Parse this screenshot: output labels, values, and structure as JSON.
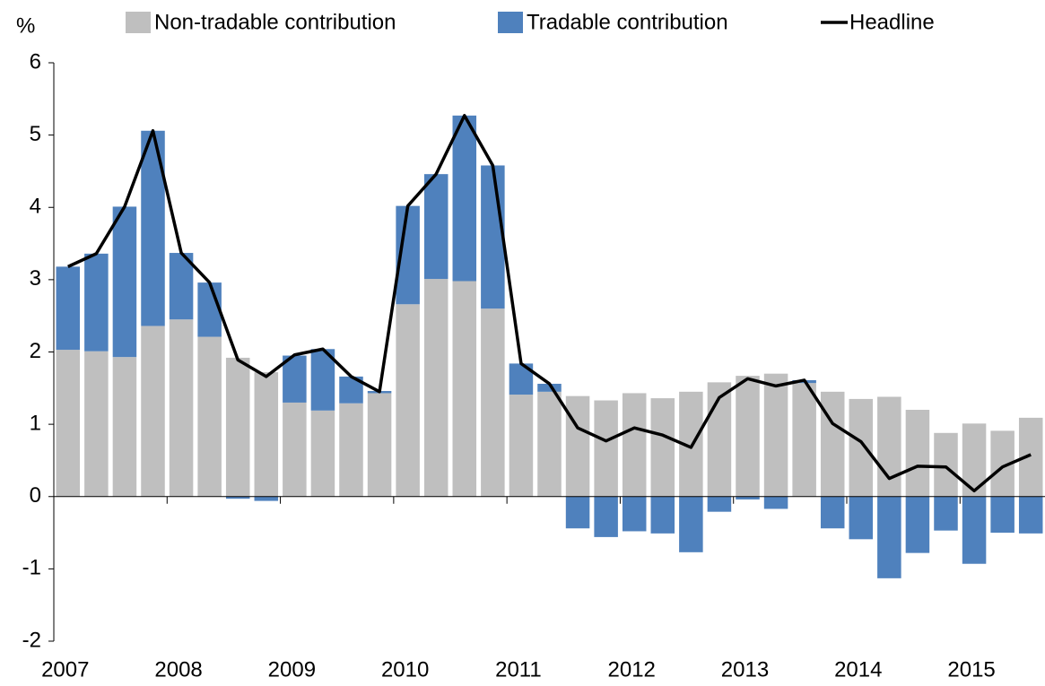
{
  "chart_data": {
    "type": "stacked_bar_line",
    "ylabel": "%",
    "categories": [
      "2007",
      null,
      null,
      null,
      "2008",
      null,
      null,
      null,
      "2009",
      null,
      null,
      null,
      "2010",
      null,
      null,
      null,
      "2011",
      null,
      null,
      null,
      "2012",
      null,
      null,
      null,
      "2013",
      null,
      null,
      null,
      "2014",
      null,
      null,
      null,
      "2015",
      null,
      null
    ],
    "series": [
      {
        "name": "Non-tradable contribution",
        "color": "#bfbfbf",
        "kind": "bar",
        "values": [
          2.03,
          2.01,
          1.93,
          2.36,
          2.45,
          2.21,
          1.92,
          1.72,
          1.3,
          1.19,
          1.29,
          1.43,
          2.66,
          3.01,
          2.98,
          2.6,
          1.41,
          1.45,
          1.39,
          1.33,
          1.43,
          1.36,
          1.45,
          1.58,
          1.67,
          1.7,
          1.57,
          1.45,
          1.35,
          1.38,
          1.2,
          0.88,
          1.01,
          0.91,
          1.09
        ]
      },
      {
        "name": "Tradable contribution",
        "color": "#4f81bd",
        "kind": "bar",
        "values": [
          1.15,
          1.35,
          2.08,
          2.7,
          0.92,
          0.75,
          -0.03,
          -0.06,
          0.65,
          0.85,
          0.37,
          0.03,
          1.36,
          1.45,
          2.29,
          1.98,
          0.43,
          0.11,
          -0.44,
          -0.56,
          -0.48,
          -0.51,
          -0.77,
          -0.21,
          -0.04,
          -0.17,
          0.04,
          -0.44,
          -0.59,
          -1.13,
          -0.78,
          -0.47,
          -0.93,
          -0.5,
          -0.51
        ]
      },
      {
        "name": "Headline",
        "color": "#000000",
        "kind": "line",
        "values": [
          3.18,
          3.36,
          4.01,
          5.06,
          3.37,
          2.96,
          1.89,
          1.66,
          1.96,
          2.04,
          1.66,
          1.45,
          4.02,
          4.46,
          5.27,
          4.58,
          1.84,
          1.56,
          0.95,
          0.77,
          0.95,
          0.85,
          0.68,
          1.37,
          1.63,
          1.53,
          1.61,
          1.01,
          0.76,
          0.25,
          0.42,
          0.41,
          0.08,
          0.41,
          0.58
        ]
      }
    ],
    "ylim": [
      -2,
      6
    ],
    "yticks": [
      -2,
      -1,
      0,
      1,
      2,
      3,
      4,
      5,
      6
    ],
    "legend": "top"
  }
}
